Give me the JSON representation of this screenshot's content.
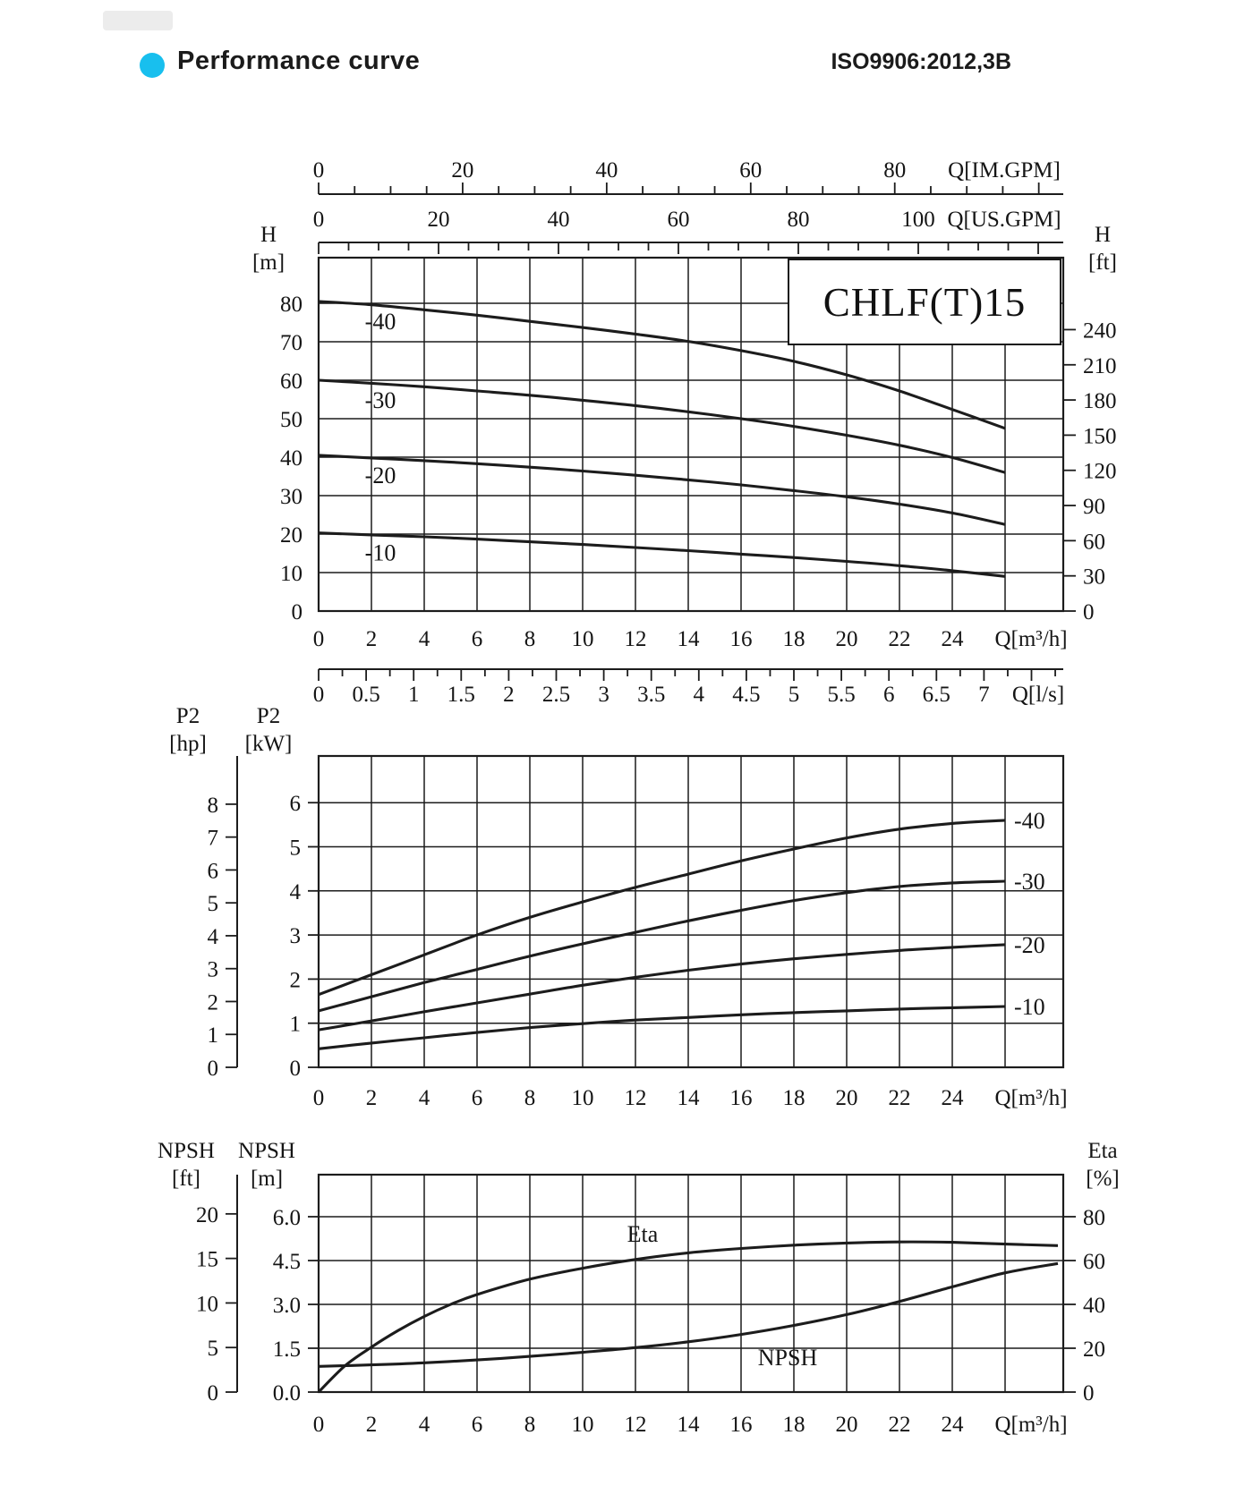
{
  "header": {
    "title": "Performance curve",
    "standard": "ISO9906:2012,3B",
    "accent_color": "#18bfee"
  },
  "model": "CHLF(T)15",
  "axes": {
    "q_m3h": {
      "label": "Q[m³/h]",
      "ticks": [
        0,
        2,
        4,
        6,
        8,
        10,
        12,
        14,
        16,
        18,
        20,
        22,
        24
      ]
    },
    "q_ls": {
      "label": "Q[l/s]",
      "ticks": [
        "0",
        "0.5",
        "1",
        "1.5",
        "2",
        "2.5",
        "3",
        "3.5",
        "4",
        "4.5",
        "5",
        "5.5",
        "6",
        "6.5",
        "7"
      ]
    },
    "q_imgpm": {
      "label": "Q[IM.GPM]",
      "ticks": [
        0,
        20,
        40,
        60,
        80
      ]
    },
    "q_usgpm": {
      "label": "Q[US.GPM]",
      "ticks": [
        0,
        20,
        40,
        60,
        80,
        100
      ]
    },
    "h_m": {
      "label_1": "H",
      "label_2": "[m]",
      "ticks": [
        0,
        10,
        20,
        30,
        40,
        50,
        60,
        70,
        80
      ]
    },
    "h_ft": {
      "label_1": "H",
      "label_2": "[ft]",
      "ticks": [
        0,
        30,
        60,
        90,
        120,
        150,
        180,
        210,
        240
      ]
    },
    "p2_kw": {
      "label_1": "P2",
      "label_2": "[kW]",
      "ticks": [
        0,
        1,
        2,
        3,
        4,
        5,
        6
      ]
    },
    "p2_hp": {
      "label_1": "P2",
      "label_2": "[hp]",
      "ticks": [
        0,
        1,
        2,
        3,
        4,
        5,
        6,
        7,
        8
      ]
    },
    "npsh_m": {
      "label_1": "NPSH",
      "label_2": "[m]",
      "ticks": [
        "0.0",
        "1.5",
        "3.0",
        "4.5",
        "6.0"
      ]
    },
    "npsh_ft": {
      "label_1": "NPSH",
      "label_2": "[ft]",
      "ticks": [
        0,
        5,
        10,
        15,
        20
      ]
    },
    "eta_pct": {
      "label_1": "Eta",
      "label_2": "[%]",
      "ticks": [
        0,
        20,
        40,
        60,
        80
      ]
    }
  },
  "chart_data": [
    {
      "type": "line",
      "title": "CHLF(T)15",
      "xlabel": "Q[m³/h]",
      "ylabel_left": "H [m]",
      "ylabel_right": "H [ft]",
      "secondary_x_axes": [
        "Q[IM.GPM]",
        "Q[US.GPM]",
        "Q[l/s]"
      ],
      "xlim": [
        0,
        28
      ],
      "ylim": [
        0,
        92
      ],
      "grid": true,
      "series": [
        {
          "name": "-40",
          "unit": "m",
          "points": [
            [
              0,
              80.5
            ],
            [
              2,
              79.6
            ],
            [
              4,
              78.3
            ],
            [
              6,
              76.9
            ],
            [
              8,
              75.3
            ],
            [
              10,
              73.7
            ],
            [
              12,
              72.0
            ],
            [
              14,
              70.1
            ],
            [
              16,
              67.7
            ],
            [
              18,
              64.9
            ],
            [
              20,
              61.4
            ],
            [
              22,
              57.2
            ],
            [
              24,
              52.4
            ],
            [
              26,
              47.5
            ]
          ]
        },
        {
          "name": "-30",
          "unit": "m",
          "points": [
            [
              0,
              60.0
            ],
            [
              2,
              59.2
            ],
            [
              4,
              58.3
            ],
            [
              6,
              57.2
            ],
            [
              8,
              56.1
            ],
            [
              10,
              54.8
            ],
            [
              12,
              53.4
            ],
            [
              14,
              51.8
            ],
            [
              16,
              50.0
            ],
            [
              18,
              48.0
            ],
            [
              20,
              45.7
            ],
            [
              22,
              43.1
            ],
            [
              24,
              39.9
            ],
            [
              26,
              36.0
            ]
          ]
        },
        {
          "name": "-20",
          "unit": "m",
          "points": [
            [
              0,
              40.5
            ],
            [
              2,
              39.8
            ],
            [
              4,
              39.1
            ],
            [
              6,
              38.3
            ],
            [
              8,
              37.4
            ],
            [
              10,
              36.4
            ],
            [
              12,
              35.3
            ],
            [
              14,
              34.1
            ],
            [
              16,
              32.8
            ],
            [
              18,
              31.3
            ],
            [
              20,
              29.7
            ],
            [
              22,
              27.8
            ],
            [
              24,
              25.5
            ],
            [
              26,
              22.5
            ]
          ]
        },
        {
          "name": "-10",
          "unit": "m",
          "points": [
            [
              0,
              20.3
            ],
            [
              2,
              19.8
            ],
            [
              4,
              19.3
            ],
            [
              6,
              18.7
            ],
            [
              8,
              18.0
            ],
            [
              10,
              17.3
            ],
            [
              12,
              16.5
            ],
            [
              14,
              15.7
            ],
            [
              16,
              14.8
            ],
            [
              18,
              13.9
            ],
            [
              20,
              12.9
            ],
            [
              22,
              11.8
            ],
            [
              24,
              10.5
            ],
            [
              26,
              9.0
            ]
          ]
        }
      ]
    },
    {
      "type": "line",
      "xlabel": "Q[m³/h]",
      "ylabel_left": "P2 [kW]",
      "ylabel_secondary": "P2 [hp]",
      "xlim": [
        0,
        28
      ],
      "ylim": [
        0,
        7
      ],
      "grid": true,
      "series": [
        {
          "name": "-40",
          "unit": "kW",
          "points": [
            [
              0,
              1.65
            ],
            [
              2,
              2.1
            ],
            [
              4,
              2.55
            ],
            [
              6,
              3.0
            ],
            [
              8,
              3.4
            ],
            [
              10,
              3.75
            ],
            [
              12,
              4.08
            ],
            [
              14,
              4.38
            ],
            [
              16,
              4.68
            ],
            [
              18,
              4.95
            ],
            [
              20,
              5.2
            ],
            [
              22,
              5.4
            ],
            [
              24,
              5.53
            ],
            [
              26,
              5.6
            ]
          ]
        },
        {
          "name": "-30",
          "unit": "kW",
          "points": [
            [
              0,
              1.28
            ],
            [
              2,
              1.6
            ],
            [
              4,
              1.92
            ],
            [
              6,
              2.22
            ],
            [
              8,
              2.52
            ],
            [
              10,
              2.8
            ],
            [
              12,
              3.06
            ],
            [
              14,
              3.32
            ],
            [
              16,
              3.56
            ],
            [
              18,
              3.78
            ],
            [
              20,
              3.96
            ],
            [
              22,
              4.1
            ],
            [
              24,
              4.18
            ],
            [
              26,
              4.22
            ]
          ]
        },
        {
          "name": "-20",
          "unit": "kW",
          "points": [
            [
              0,
              0.85
            ],
            [
              2,
              1.05
            ],
            [
              4,
              1.26
            ],
            [
              6,
              1.46
            ],
            [
              8,
              1.66
            ],
            [
              10,
              1.86
            ],
            [
              12,
              2.04
            ],
            [
              14,
              2.2
            ],
            [
              16,
              2.34
            ],
            [
              18,
              2.46
            ],
            [
              20,
              2.56
            ],
            [
              22,
              2.65
            ],
            [
              24,
              2.72
            ],
            [
              26,
              2.78
            ]
          ]
        },
        {
          "name": "-10",
          "unit": "kW",
          "points": [
            [
              0,
              0.42
            ],
            [
              2,
              0.55
            ],
            [
              4,
              0.67
            ],
            [
              6,
              0.79
            ],
            [
              8,
              0.9
            ],
            [
              10,
              0.99
            ],
            [
              12,
              1.07
            ],
            [
              14,
              1.13
            ],
            [
              16,
              1.19
            ],
            [
              18,
              1.24
            ],
            [
              20,
              1.28
            ],
            [
              22,
              1.32
            ],
            [
              24,
              1.35
            ],
            [
              26,
              1.38
            ]
          ]
        }
      ]
    },
    {
      "type": "line",
      "xlabel": "Q[m³/h]",
      "ylabel_left": "NPSH [m]",
      "ylabel_secondary": "NPSH [ft]",
      "ylabel_right": "Eta [%]",
      "xlim": [
        0,
        28
      ],
      "ylim": [
        0,
        7.45
      ],
      "grid": true,
      "series": [
        {
          "name": "Eta",
          "unit": "%",
          "points": [
            [
              0,
              0
            ],
            [
              1,
              12
            ],
            [
              2,
              20.5
            ],
            [
              3,
              28
            ],
            [
              4,
              34.5
            ],
            [
              5,
              40
            ],
            [
              6,
              44.5
            ],
            [
              8,
              51.5
            ],
            [
              10,
              56.5
            ],
            [
              12,
              60.5
            ],
            [
              14,
              63.5
            ],
            [
              16,
              65.5
            ],
            [
              18,
              67
            ],
            [
              20,
              68
            ],
            [
              22,
              68.5
            ],
            [
              24,
              68.3
            ],
            [
              26,
              67.5
            ],
            [
              28,
              66.8
            ]
          ]
        },
        {
          "name": "NPSH",
          "unit": "m",
          "points": [
            [
              0,
              0.88
            ],
            [
              2,
              0.93
            ],
            [
              4,
              1.0
            ],
            [
              6,
              1.1
            ],
            [
              8,
              1.22
            ],
            [
              10,
              1.36
            ],
            [
              12,
              1.52
            ],
            [
              14,
              1.72
            ],
            [
              16,
              1.97
            ],
            [
              18,
              2.28
            ],
            [
              20,
              2.65
            ],
            [
              22,
              3.1
            ],
            [
              24,
              3.6
            ],
            [
              26,
              4.08
            ],
            [
              28,
              4.4
            ]
          ]
        }
      ]
    }
  ]
}
